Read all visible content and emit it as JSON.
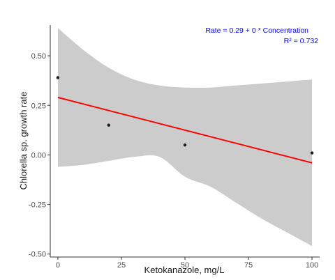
{
  "chart_data": {
    "type": "scatter",
    "xlabel": "Ketokanazole, mg/L",
    "ylabel": "Chlorella sp. growth rate",
    "xlim": [
      -3,
      103
    ],
    "ylim": [
      -0.515,
      0.655
    ],
    "x_ticks": [
      0,
      25,
      50,
      75,
      100
    ],
    "x_tick_labels": [
      "0",
      "25",
      "50",
      "75",
      "100"
    ],
    "y_ticks": [
      -0.5,
      -0.25,
      0,
      0.25,
      0.5
    ],
    "y_tick_labels": [
      "-0.50",
      "-0.25",
      "0.00",
      "0.25",
      "0.50"
    ],
    "grid": false,
    "points": {
      "x": [
        0,
        20,
        50,
        100
      ],
      "y": [
        0.39,
        0.15,
        0.05,
        0.01
      ],
      "color": "#1a1a1a"
    },
    "fit_line": {
      "intercept": 0.29,
      "slope": -0.0033,
      "x_range": [
        0,
        100
      ],
      "color": "#ff0000"
    },
    "confidence_band": {
      "color": "#cccccc",
      "x": [
        0,
        10,
        20,
        30,
        40,
        50,
        60,
        70,
        80,
        90,
        100
      ],
      "upper": [
        0.64,
        0.53,
        0.44,
        0.38,
        0.35,
        0.34,
        0.34,
        0.35,
        0.36,
        0.37,
        0.38
      ],
      "lower": [
        -0.06,
        -0.05,
        -0.03,
        -0.01,
        -0.01,
        -0.11,
        -0.16,
        -0.24,
        -0.32,
        -0.39,
        -0.46
      ]
    },
    "annotation": {
      "equation": "Rate =  0.29  +  0  * Concentration",
      "r_squared": "R² =  0.732",
      "color": "#0000ff"
    }
  }
}
